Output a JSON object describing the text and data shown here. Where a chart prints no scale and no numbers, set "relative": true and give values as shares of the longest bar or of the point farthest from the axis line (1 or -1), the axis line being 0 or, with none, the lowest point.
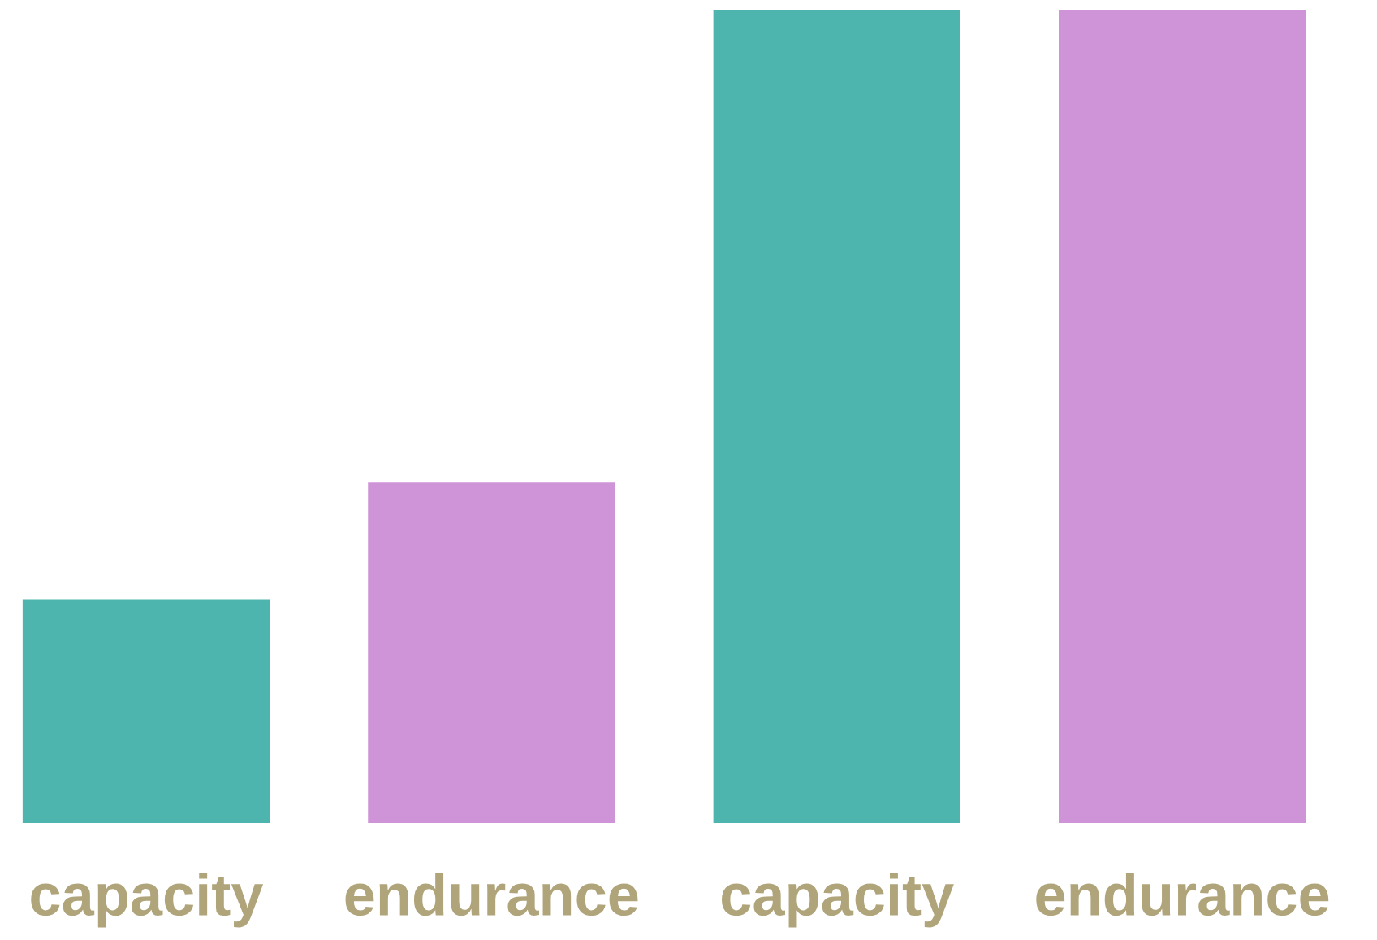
{
  "chart_data": {
    "type": "bar",
    "relative": true,
    "categories": [
      "capacity",
      "endurance",
      "capacity",
      "endurance"
    ],
    "values": [
      0.275,
      0.419,
      1,
      1
    ],
    "colors": [
      "#4db5ae",
      "#cf93d8",
      "#4db5ae",
      "#cf93d8"
    ]
  }
}
